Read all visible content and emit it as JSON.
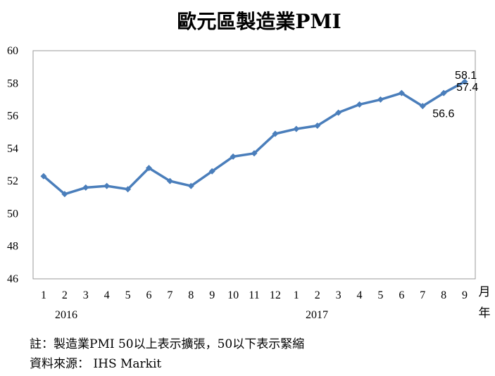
{
  "chart_data": {
    "type": "line",
    "title": "歐元區製造業PMI",
    "x_months": [
      "1",
      "2",
      "3",
      "4",
      "5",
      "6",
      "7",
      "8",
      "9",
      "10",
      "11",
      "12",
      "1",
      "2",
      "3",
      "4",
      "5",
      "6",
      "7",
      "8",
      "9"
    ],
    "years": [
      "2016",
      "2017"
    ],
    "x_unit": [
      "月",
      "年"
    ],
    "ylim": [
      46,
      60
    ],
    "yticks": [
      46,
      48,
      50,
      52,
      54,
      56,
      58,
      60
    ],
    "series": [
      {
        "color": "#4a7ebb",
        "values": [
          52.3,
          51.2,
          51.6,
          51.7,
          51.5,
          52.8,
          52.0,
          51.7,
          52.6,
          53.5,
          53.7,
          54.9,
          55.2,
          55.4,
          56.2,
          56.7,
          57.0,
          57.4,
          56.6,
          57.4,
          58.1
        ]
      }
    ],
    "data_labels": [
      {
        "index": 18,
        "text": "56.6"
      },
      {
        "index": 19,
        "text": "57.4"
      },
      {
        "index": 20,
        "text": "58.1"
      }
    ],
    "grid": false,
    "legend": "none"
  },
  "notes": {
    "line1": "註：製造業PMI 50以上表示擴張，50以下表示緊縮",
    "line2": "資料來源： IHS Markit"
  }
}
